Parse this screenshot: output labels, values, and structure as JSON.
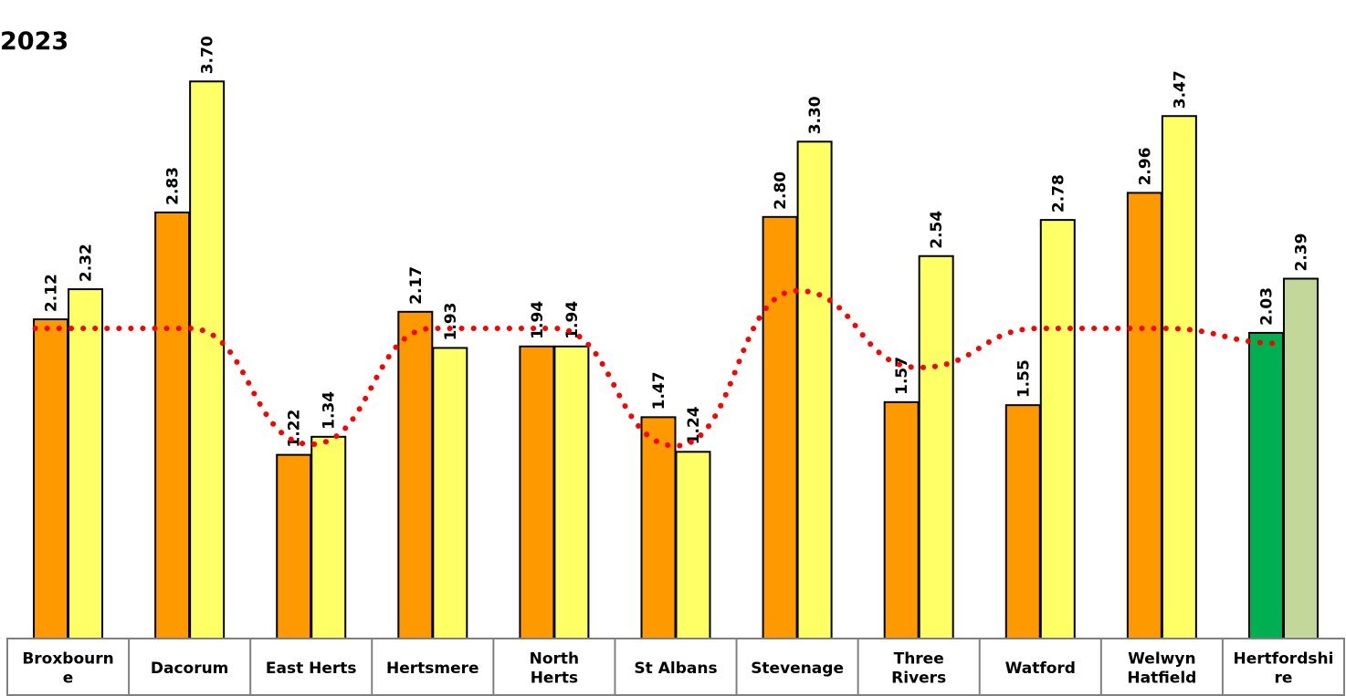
{
  "chart_data": {
    "type": "bar",
    "title_fragment": "2023",
    "categories": [
      [
        "Broxbourn",
        "e"
      ],
      [
        "Dacorum"
      ],
      [
        "East Herts"
      ],
      [
        "Hertsmere"
      ],
      [
        "North",
        "Herts"
      ],
      [
        "St Albans"
      ],
      [
        "Stevenage"
      ],
      [
        "Three",
        "Rivers"
      ],
      [
        "Watford"
      ],
      [
        "Welwyn",
        "Hatfield"
      ],
      [
        "Hertfordshi",
        "re"
      ]
    ],
    "series": [
      {
        "values": [
          2.12,
          2.83,
          1.22,
          2.17,
          1.94,
          1.47,
          2.8,
          1.57,
          1.55,
          2.96,
          2.03
        ]
      },
      {
        "values": [
          2.32,
          3.7,
          1.34,
          1.93,
          1.94,
          1.24,
          3.3,
          2.54,
          2.78,
          3.47,
          2.39
        ]
      }
    ],
    "trend_line": {
      "style": "dotted",
      "color": "#ff0000",
      "values": [
        2.06,
        2.06,
        1.29,
        2.06,
        2.06,
        1.28,
        2.31,
        1.8,
        2.06,
        2.06,
        1.96
      ]
    },
    "ylim": [
      0,
      3.95
    ],
    "data_labels": [
      "2.12",
      "2.32",
      "2.83",
      "3.70",
      "1.22",
      "1.34",
      "2.17",
      "1.93",
      "1.94",
      "1.94",
      "1.47",
      "1.24",
      "2.80",
      "3.30",
      "1.57",
      "2.54",
      "1.55",
      "2.78",
      "2.96",
      "3.47",
      "2.03",
      "2.39"
    ],
    "colors": {
      "series1": "#ff9900",
      "series2": "#ffff66",
      "series1_highlight": "#00b050",
      "series2_highlight": "#c4d79b",
      "trend": "#ff0000",
      "table_border": "#808080"
    },
    "grid": false,
    "legend": "none"
  }
}
